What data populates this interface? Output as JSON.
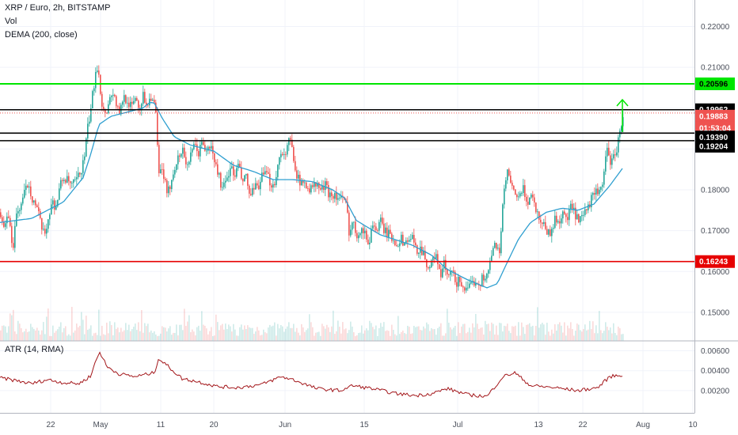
{
  "header": {
    "symbol_line": "XRP / Euro, 2h, BITSTAMP",
    "volume_label": "Vol",
    "dema_label": "DEMA (200, close)",
    "atr_label": "ATR (14, RMA)"
  },
  "colors": {
    "up": "#26a69a",
    "down": "#ef5350",
    "dema": "#2f9fd0",
    "atr": "#a3161a",
    "green_level": "#00e600",
    "red_level": "#e60000",
    "black_level": "#000000",
    "current_price": "#ef5350"
  },
  "price_labels": {
    "green": "0.20596",
    "black_top": "0.19962",
    "current": "0.19883",
    "countdown": "01:53:04",
    "black_mid": "0.19390",
    "black_low": "0.19204",
    "red": "0.16243"
  },
  "chart_data": [
    {
      "type": "candlestick",
      "title": "XRP / Euro, 2h, BITSTAMP",
      "ylim": [
        0.143,
        0.2265
      ],
      "x_ticks": [
        "22",
        "May",
        "11",
        "20",
        "Jun",
        "15",
        "Jul",
        "13",
        "22",
        "Aug",
        "10"
      ],
      "y_ticks": [
        "0.22000",
        "0.21000",
        "0.20000",
        "0.19000",
        "0.18000",
        "0.17000",
        "0.16000",
        "0.15000"
      ],
      "levels": [
        {
          "name": "green",
          "value": 0.20596
        },
        {
          "name": "black_top",
          "value": 0.19962
        },
        {
          "name": "black_mid",
          "value": 0.1939
        },
        {
          "name": "black_low",
          "value": 0.19204
        },
        {
          "name": "red",
          "value": 0.16243
        }
      ],
      "current_price": 0.19883,
      "path_keypoints": [
        [
          0,
          0.1745
        ],
        [
          5,
          0.17
        ],
        [
          10,
          0.174
        ],
        [
          15,
          0.165
        ],
        [
          20,
          0.174
        ],
        [
          25,
          0.176
        ],
        [
          30,
          0.179
        ],
        [
          35,
          0.182
        ],
        [
          40,
          0.178
        ],
        [
          45,
          0.176
        ],
        [
          50,
          0.172
        ],
        [
          55,
          0.1685
        ],
        [
          60,
          0.173
        ],
        [
          65,
          0.177
        ],
        [
          70,
          0.176
        ],
        [
          75,
          0.181
        ],
        [
          80,
          0.183
        ],
        [
          85,
          0.182
        ],
        [
          90,
          0.181
        ],
        [
          95,
          0.182
        ],
        [
          100,
          0.184
        ],
        [
          105,
          0.187
        ],
        [
          110,
          0.195
        ],
        [
          114,
          0.2
        ],
        [
          118,
          0.206
        ],
        [
          121,
          0.211
        ],
        [
          124,
          0.209
        ],
        [
          127,
          0.202
        ],
        [
          130,
          0.199
        ],
        [
          135,
          0.2
        ],
        [
          140,
          0.204
        ],
        [
          145,
          0.202
        ],
        [
          150,
          0.198
        ],
        [
          155,
          0.203
        ],
        [
          160,
          0.202
        ],
        [
          165,
          0.2
        ],
        [
          170,
          0.203
        ],
        [
          175,
          0.2
        ],
        [
          180,
          0.203
        ],
        [
          185,
          0.201
        ],
        [
          190,
          0.203
        ],
        [
          195,
          0.2
        ],
        [
          197,
          0.197
        ],
        [
          199,
          0.183
        ],
        [
          203,
          0.185
        ],
        [
          207,
          0.183
        ],
        [
          210,
          0.178
        ],
        [
          215,
          0.182
        ],
        [
          220,
          0.186
        ],
        [
          225,
          0.188
        ],
        [
          230,
          0.19
        ],
        [
          235,
          0.186
        ],
        [
          240,
          0.188
        ],
        [
          245,
          0.191
        ],
        [
          250,
          0.189
        ],
        [
          255,
          0.192
        ],
        [
          260,
          0.189
        ],
        [
          265,
          0.191
        ],
        [
          270,
          0.187
        ],
        [
          275,
          0.184
        ],
        [
          280,
          0.18
        ],
        [
          285,
          0.182
        ],
        [
          290,
          0.186
        ],
        [
          295,
          0.183
        ],
        [
          300,
          0.186
        ],
        [
          305,
          0.182
        ],
        [
          310,
          0.183
        ],
        [
          315,
          0.178
        ],
        [
          320,
          0.18
        ],
        [
          325,
          0.181
        ],
        [
          330,
          0.183
        ],
        [
          335,
          0.184
        ],
        [
          340,
          0.182
        ],
        [
          345,
          0.181
        ],
        [
          350,
          0.186
        ],
        [
          355,
          0.19
        ],
        [
          360,
          0.188
        ],
        [
          365,
          0.193
        ],
        [
          370,
          0.188
        ],
        [
          375,
          0.183
        ],
        [
          380,
          0.181
        ],
        [
          385,
          0.182
        ],
        [
          390,
          0.18
        ],
        [
          395,
          0.181
        ],
        [
          400,
          0.181
        ],
        [
          405,
          0.18
        ],
        [
          410,
          0.181
        ],
        [
          415,
          0.179
        ],
        [
          420,
          0.179
        ],
        [
          425,
          0.178
        ],
        [
          430,
          0.178
        ],
        [
          435,
          0.177
        ],
        [
          438,
          0.174
        ],
        [
          440,
          0.17
        ],
        [
          445,
          0.172
        ],
        [
          450,
          0.169
        ],
        [
          455,
          0.171
        ],
        [
          460,
          0.169
        ],
        [
          465,
          0.167
        ],
        [
          470,
          0.172
        ],
        [
          475,
          0.17
        ],
        [
          480,
          0.172
        ],
        [
          485,
          0.17
        ],
        [
          490,
          0.169
        ],
        [
          495,
          0.168
        ],
        [
          500,
          0.167
        ],
        [
          505,
          0.168
        ],
        [
          510,
          0.167
        ],
        [
          515,
          0.168
        ],
        [
          520,
          0.168
        ],
        [
          525,
          0.165
        ],
        [
          530,
          0.166
        ],
        [
          535,
          0.164
        ],
        [
          540,
          0.161
        ],
        [
          545,
          0.162
        ],
        [
          550,
          0.165
        ],
        [
          555,
          0.158
        ],
        [
          560,
          0.162
        ],
        [
          565,
          0.158
        ],
        [
          570,
          0.16
        ],
        [
          575,
          0.157
        ],
        [
          580,
          0.158
        ],
        [
          585,
          0.156
        ],
        [
          590,
          0.155
        ],
        [
          595,
          0.157
        ],
        [
          600,
          0.158
        ],
        [
          605,
          0.157
        ],
        [
          610,
          0.159
        ],
        [
          615,
          0.159
        ],
        [
          620,
          0.164
        ],
        [
          625,
          0.167
        ],
        [
          630,
          0.165
        ],
        [
          635,
          0.178
        ],
        [
          640,
          0.185
        ],
        [
          645,
          0.18
        ],
        [
          650,
          0.179
        ],
        [
          655,
          0.178
        ],
        [
          660,
          0.18
        ],
        [
          665,
          0.177
        ],
        [
          670,
          0.179
        ],
        [
          675,
          0.176
        ],
        [
          680,
          0.173
        ],
        [
          685,
          0.172
        ],
        [
          690,
          0.17
        ],
        [
          695,
          0.169
        ],
        [
          700,
          0.173
        ],
        [
          705,
          0.172
        ],
        [
          710,
          0.175
        ],
        [
          715,
          0.172
        ],
        [
          720,
          0.176
        ],
        [
          725,
          0.174
        ],
        [
          730,
          0.172
        ],
        [
          735,
          0.173
        ],
        [
          740,
          0.175
        ],
        [
          745,
          0.177
        ],
        [
          750,
          0.18
        ],
        [
          755,
          0.178
        ],
        [
          760,
          0.182
        ],
        [
          765,
          0.19
        ],
        [
          770,
          0.187
        ],
        [
          775,
          0.188
        ],
        [
          780,
          0.192
        ],
        [
          785,
          0.197
        ],
        [
          787,
          0.199
        ]
      ],
      "dema_keypoints": [
        [
          0,
          0.172
        ],
        [
          40,
          0.173
        ],
        [
          80,
          0.177
        ],
        [
          105,
          0.183
        ],
        [
          115,
          0.189
        ],
        [
          125,
          0.196
        ],
        [
          140,
          0.198
        ],
        [
          160,
          0.199
        ],
        [
          180,
          0.2
        ],
        [
          190,
          0.2015
        ],
        [
          195,
          0.2012
        ],
        [
          205,
          0.1975
        ],
        [
          220,
          0.193
        ],
        [
          240,
          0.191
        ],
        [
          270,
          0.1895
        ],
        [
          295,
          0.186
        ],
        [
          320,
          0.1845
        ],
        [
          345,
          0.1825
        ],
        [
          370,
          0.1825
        ],
        [
          395,
          0.182
        ],
        [
          420,
          0.18
        ],
        [
          435,
          0.178
        ],
        [
          450,
          0.1725
        ],
        [
          480,
          0.169
        ],
        [
          520,
          0.1665
        ],
        [
          545,
          0.164
        ],
        [
          565,
          0.1605
        ],
        [
          590,
          0.158
        ],
        [
          615,
          0.156
        ],
        [
          628,
          0.157
        ],
        [
          640,
          0.162
        ],
        [
          655,
          0.168
        ],
        [
          670,
          0.172
        ],
        [
          690,
          0.1745
        ],
        [
          710,
          0.1755
        ],
        [
          730,
          0.175
        ],
        [
          750,
          0.1765
        ],
        [
          770,
          0.181
        ],
        [
          787,
          0.1855
        ]
      ]
    },
    {
      "type": "line",
      "title": "ATR (14, RMA)",
      "ylim": [
        0.0,
        0.0066
      ],
      "y_ticks": [
        "0.00600",
        "0.00400",
        "0.00200"
      ],
      "keypoints": [
        [
          0,
          0.0033
        ],
        [
          20,
          0.003
        ],
        [
          40,
          0.0027
        ],
        [
          60,
          0.0031
        ],
        [
          80,
          0.0028
        ],
        [
          100,
          0.0027
        ],
        [
          115,
          0.0035
        ],
        [
          120,
          0.0048
        ],
        [
          126,
          0.0059
        ],
        [
          135,
          0.0044
        ],
        [
          150,
          0.0037
        ],
        [
          170,
          0.0034
        ],
        [
          195,
          0.0038
        ],
        [
          200,
          0.0052
        ],
        [
          210,
          0.0046
        ],
        [
          230,
          0.0032
        ],
        [
          250,
          0.0029
        ],
        [
          275,
          0.0024
        ],
        [
          300,
          0.0023
        ],
        [
          330,
          0.0026
        ],
        [
          355,
          0.0034
        ],
        [
          370,
          0.0031
        ],
        [
          400,
          0.0022
        ],
        [
          430,
          0.002
        ],
        [
          445,
          0.0025
        ],
        [
          470,
          0.0022
        ],
        [
          500,
          0.0017
        ],
        [
          525,
          0.0015
        ],
        [
          545,
          0.0017
        ],
        [
          565,
          0.0022
        ],
        [
          590,
          0.0016
        ],
        [
          615,
          0.0014
        ],
        [
          635,
          0.0034
        ],
        [
          650,
          0.0038
        ],
        [
          670,
          0.0025
        ],
        [
          700,
          0.0023
        ],
        [
          730,
          0.002
        ],
        [
          755,
          0.0023
        ],
        [
          770,
          0.0034
        ],
        [
          787,
          0.0036
        ]
      ]
    }
  ]
}
